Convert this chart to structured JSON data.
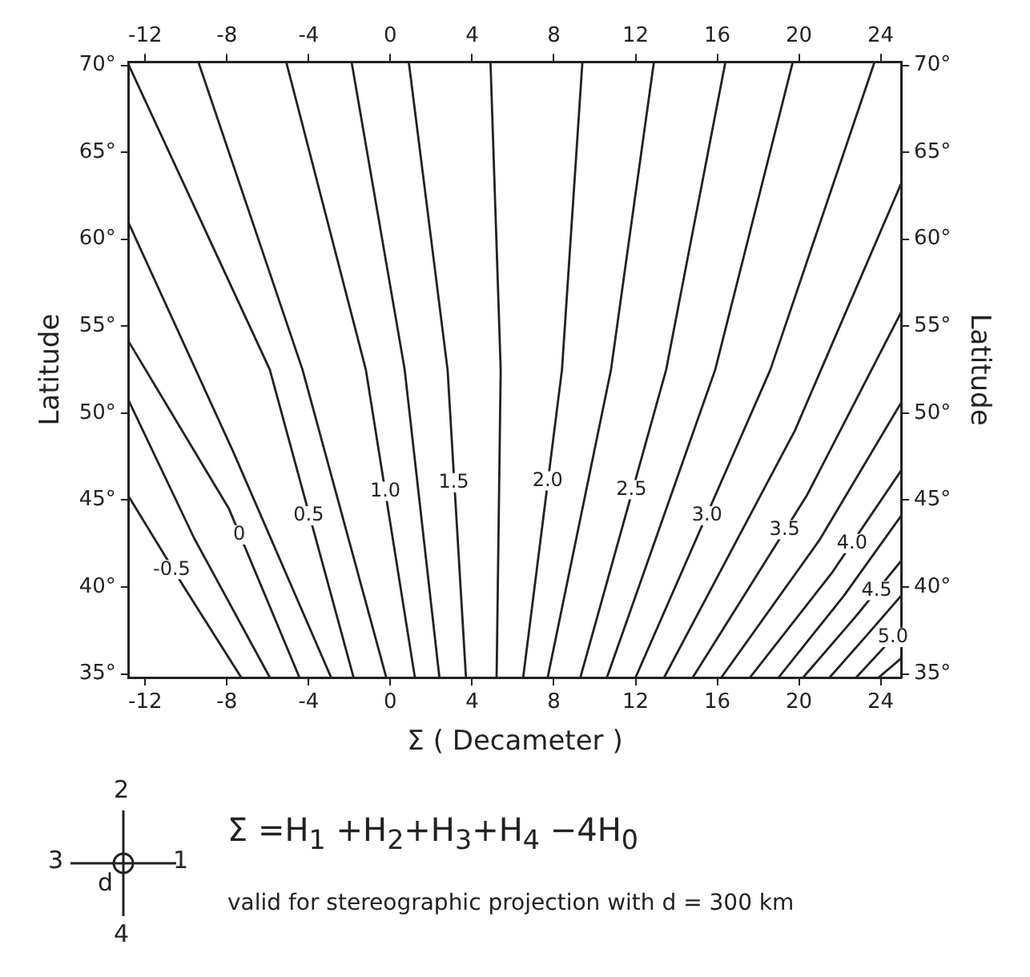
{
  "chart_data": {
    "type": "line",
    "xlabel": "Σ ( Decameter )",
    "ylabel": "Latitude",
    "y2label": "Latitude",
    "marker": "none",
    "line_style": "solid",
    "xlim": [
      -12.8,
      25
    ],
    "xticks": [
      -12,
      -8,
      -4,
      0,
      4,
      8,
      12,
      16,
      20,
      24
    ],
    "x2lim": [
      -12.8,
      25
    ],
    "x2ticks": [
      -12,
      -8,
      -4,
      0,
      4,
      8,
      12,
      16,
      20,
      24
    ],
    "ylim": [
      34.8,
      70.2
    ],
    "yticks": [
      {
        "value": 35,
        "label": "35°"
      },
      {
        "value": 40,
        "label": "40°"
      },
      {
        "value": 45,
        "label": "45°"
      },
      {
        "value": 50,
        "label": "50°"
      },
      {
        "value": 55,
        "label": "55°"
      },
      {
        "value": 60,
        "label": "60°"
      },
      {
        "value": 65,
        "label": "65°"
      },
      {
        "value": 70,
        "label": "70°"
      }
    ],
    "y2lim": [
      34.8,
      70.2
    ],
    "y2ticks": [
      {
        "value": 35,
        "label": "35°"
      },
      {
        "value": 40,
        "label": "40°"
      },
      {
        "value": 45,
        "label": "45°"
      },
      {
        "value": 50,
        "label": "50°"
      },
      {
        "value": 55,
        "label": "55°"
      },
      {
        "value": 60,
        "label": "60°"
      },
      {
        "value": 65,
        "label": "65°"
      },
      {
        "value": 70,
        "label": "70°"
      }
    ],
    "series": [
      {
        "color": "#222222",
        "x": [
          -12.8,
          -10.1,
          -7.3
        ],
        "values": [
          45.2,
          40.0,
          34.8
        ]
      },
      {
        "color": "#222222",
        "x": [
          -12.8,
          -9.6,
          -5.9
        ],
        "values": [
          50.7,
          42.8,
          34.8
        ]
      },
      {
        "color": "#222222",
        "x": [
          -12.8,
          -7.9,
          -4.45
        ],
        "values": [
          54.1,
          44.5,
          34.8
        ]
      },
      {
        "color": "#222222",
        "x": [
          -12.8,
          -7.7,
          -2.9
        ],
        "values": [
          60.9,
          47.8,
          34.8
        ]
      },
      {
        "color": "#222222",
        "x": [
          -12.8,
          -5.9,
          -1.8
        ],
        "values": [
          70.0,
          52.5,
          34.8
        ]
      },
      {
        "color": "#222222",
        "x": [
          -9.4,
          -4.3,
          -0.2
        ],
        "values": [
          70.2,
          52.5,
          34.8
        ]
      },
      {
        "color": "#222222",
        "x": [
          -5.1,
          -1.2,
          1.2
        ],
        "values": [
          70.2,
          52.5,
          34.8
        ]
      },
      {
        "color": "#222222",
        "x": [
          -1.9,
          0.7,
          2.4
        ],
        "values": [
          70.2,
          52.5,
          34.8
        ]
      },
      {
        "color": "#222222",
        "x": [
          0.9,
          2.8,
          3.7
        ],
        "values": [
          70.2,
          52.5,
          34.8
        ]
      },
      {
        "color": "#222222",
        "x": [
          4.9,
          5.4,
          5.2
        ],
        "values": [
          70.2,
          52.5,
          34.8
        ]
      },
      {
        "color": "#222222",
        "x": [
          9.4,
          8.4,
          6.5
        ],
        "values": [
          70.2,
          52.5,
          34.8
        ]
      },
      {
        "color": "#222222",
        "x": [
          12.9,
          10.8,
          7.7
        ],
        "values": [
          70.2,
          52.5,
          34.8
        ]
      },
      {
        "color": "#222222",
        "x": [
          16.4,
          13.5,
          9.3
        ],
        "values": [
          70.2,
          52.5,
          34.8
        ]
      },
      {
        "color": "#222222",
        "x": [
          19.7,
          15.9,
          10.6
        ],
        "values": [
          70.2,
          52.5,
          34.8
        ]
      },
      {
        "color": "#222222",
        "x": [
          23.7,
          18.6,
          12.0
        ],
        "values": [
          70.2,
          52.5,
          34.8
        ]
      },
      {
        "color": "#222222",
        "x": [
          25,
          19.8,
          13.4
        ],
        "values": [
          63.2,
          49.0,
          34.8
        ]
      },
      {
        "color": "#222222",
        "x": [
          25,
          20.4,
          14.8
        ],
        "values": [
          55.8,
          45.3,
          34.8
        ]
      },
      {
        "color": "#222222",
        "x": [
          25,
          21.0,
          16.2
        ],
        "values": [
          50.6,
          42.7,
          34.8
        ]
      },
      {
        "color": "#222222",
        "x": [
          25,
          21.6,
          17.6
        ],
        "values": [
          46.7,
          40.8,
          34.8
        ]
      },
      {
        "color": "#222222",
        "x": [
          25,
          22.2,
          19.0
        ],
        "values": [
          44.1,
          39.5,
          34.8
        ]
      },
      {
        "color": "#222222",
        "x": [
          25,
          22.7,
          20.2
        ],
        "values": [
          41.5,
          38.2,
          34.8
        ]
      },
      {
        "color": "#222222",
        "x": [
          25,
          23.3,
          21.5
        ],
        "values": [
          39.5,
          37.2,
          34.8
        ]
      },
      {
        "color": "#222222",
        "x": [
          25,
          23.9,
          22.8
        ],
        "values": [
          37.6,
          36.2,
          34.8
        ]
      },
      {
        "color": "#222222",
        "x": [
          25,
          23.9
        ],
        "values": [
          35.9,
          34.8
        ]
      }
    ],
    "annotations": [
      {
        "text": "-0.5",
        "x": -10.7,
        "y": 41.0
      },
      {
        "text": "0",
        "x": -7.4,
        "y": 43.0
      },
      {
        "text": "0.5",
        "x": -4.0,
        "y": 44.1
      },
      {
        "text": "1.0",
        "x": -0.25,
        "y": 45.5
      },
      {
        "text": "1.5",
        "x": 3.1,
        "y": 46.0
      },
      {
        "text": "2.0",
        "x": 7.7,
        "y": 46.1
      },
      {
        "text": "2.5",
        "x": 11.8,
        "y": 45.6
      },
      {
        "text": "3.0",
        "x": 15.5,
        "y": 44.1
      },
      {
        "text": "3.5",
        "x": 19.3,
        "y": 43.3
      },
      {
        "text": "4.0",
        "x": 22.6,
        "y": 42.5
      },
      {
        "text": "4.5",
        "x": 23.8,
        "y": 39.8
      },
      {
        "text": "5.0",
        "x": 24.6,
        "y": 37.1
      },
      "Σ =H$_{1}$ +H$_{2}$+H$_{3}$+H$_{4}$ −4H$_{0}$",
      "valid for stereographic projection  with d = 300 km",
      "2",
      "3",
      "1",
      "4",
      "d"
    ]
  }
}
